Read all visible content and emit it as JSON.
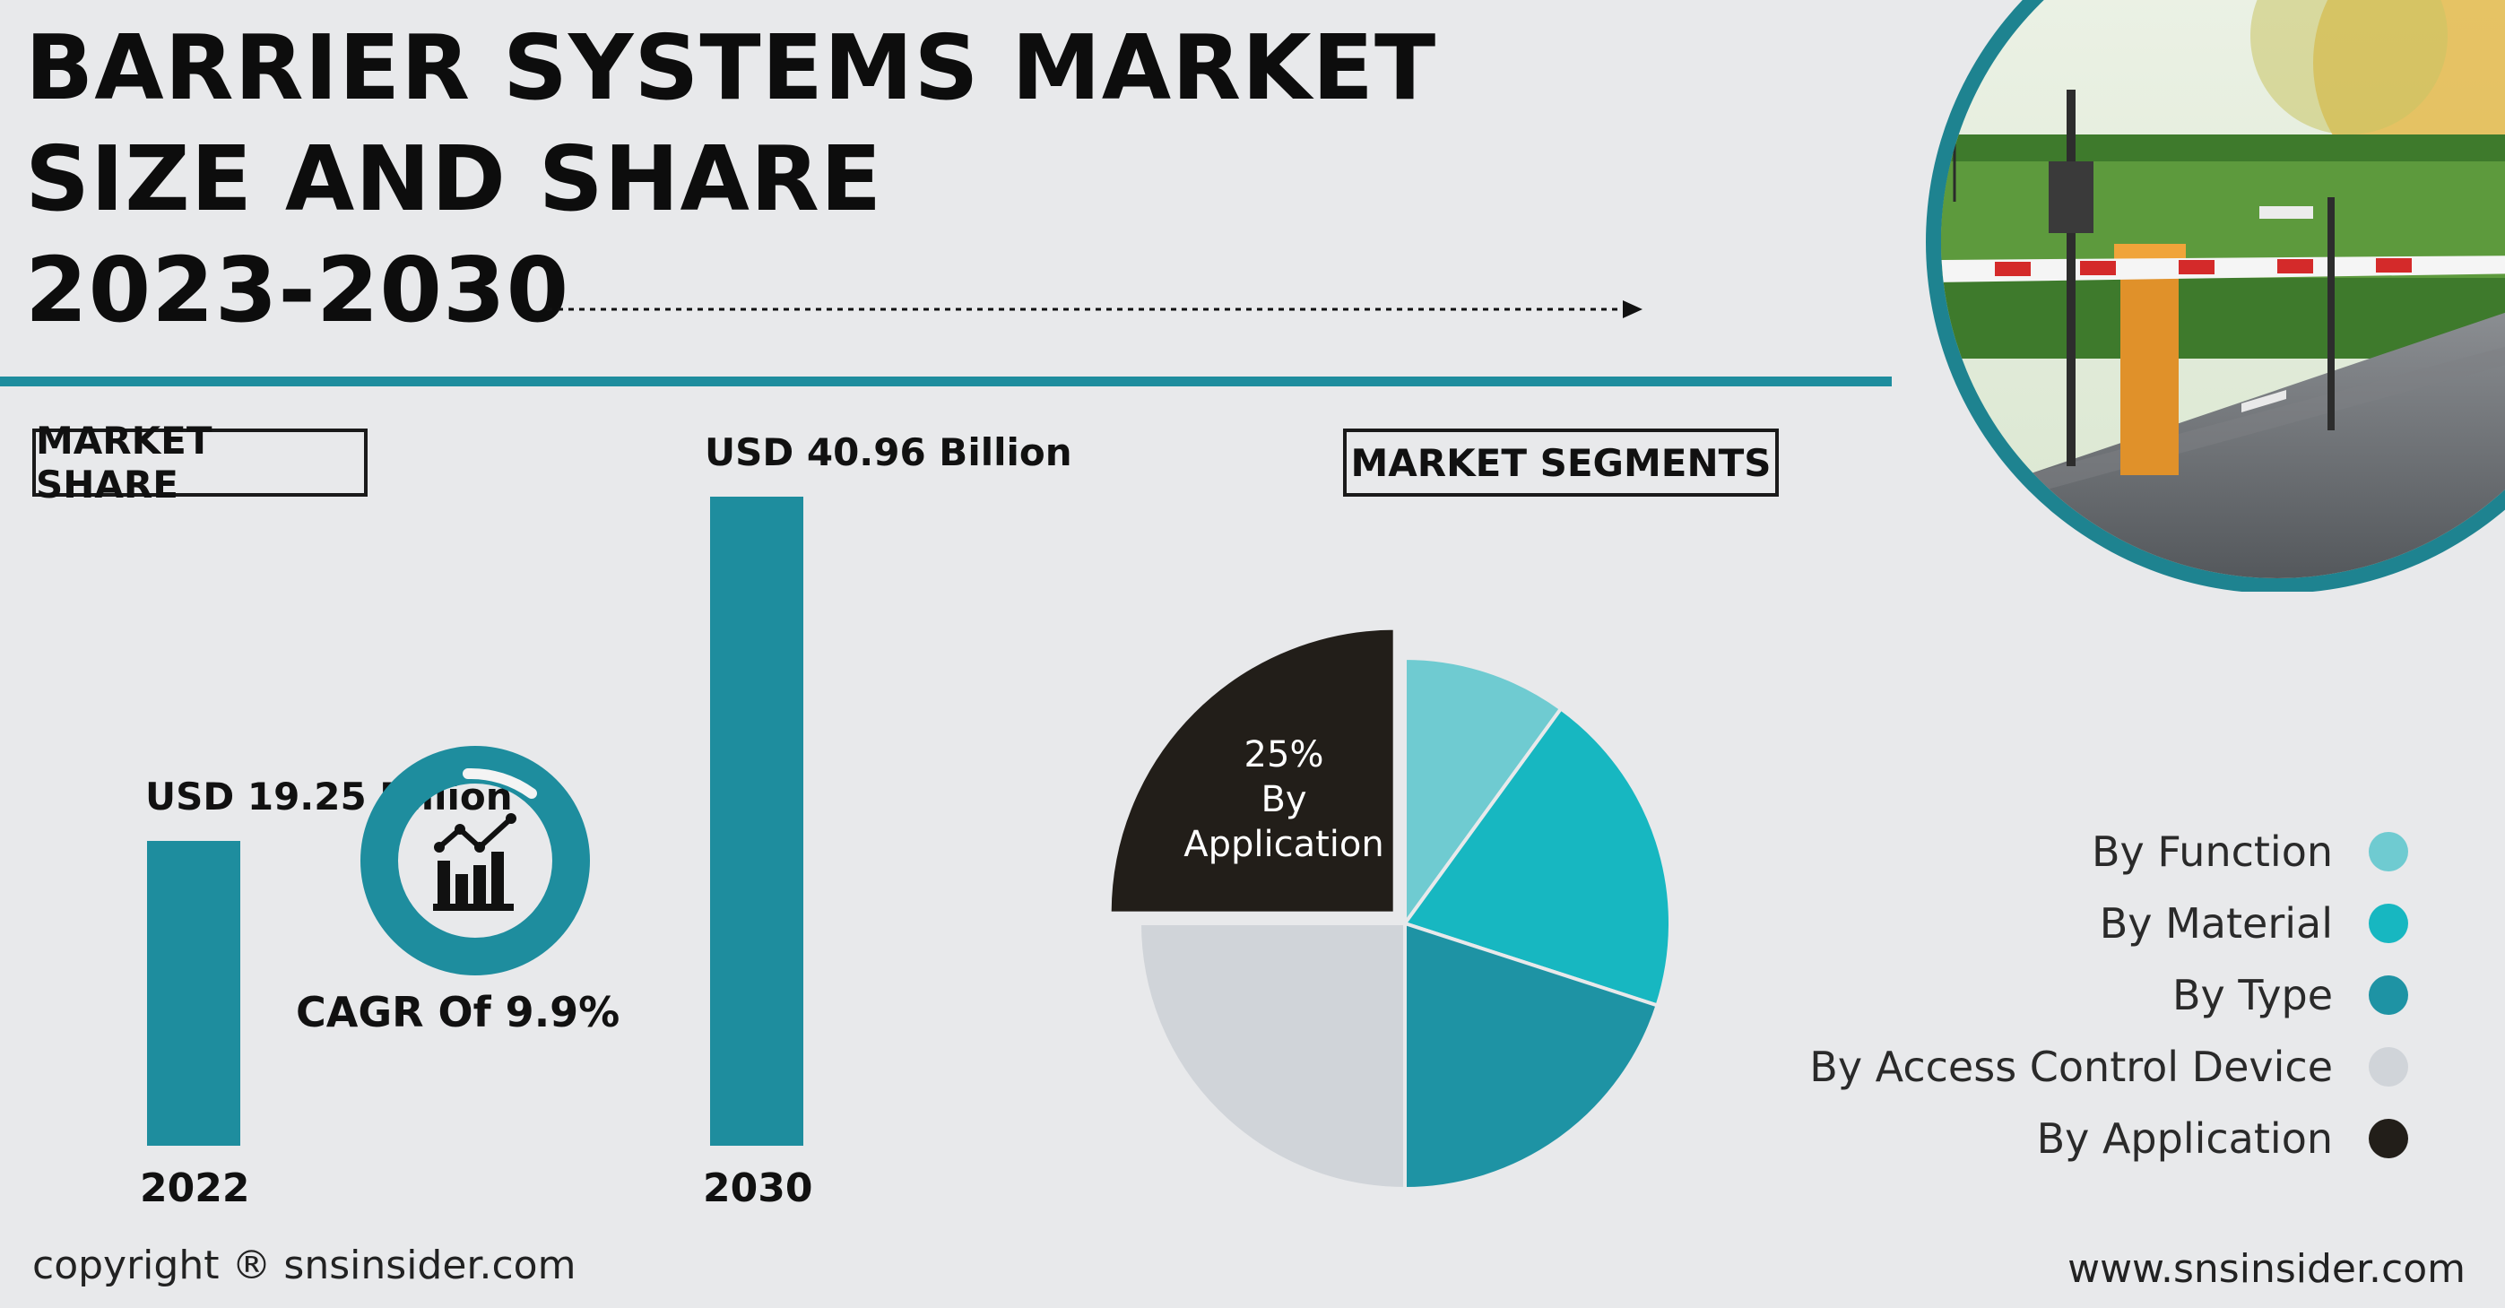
{
  "title": {
    "line1": "BARRIER SYSTEMS MARKET",
    "line2": "SIZE AND SHARE",
    "line3": "2023-2030"
  },
  "market_share_label": "MARKET SHARE",
  "market_segments_label": "MARKET SEGMENTS",
  "cagr_text": "CAGR Of 9.9%",
  "chart_data": [
    {
      "type": "bar",
      "categories": [
        "2022",
        "2030"
      ],
      "values": [
        19.25,
        40.96
      ],
      "value_labels": [
        "USD 19.25 Billion",
        "USD 40.96 Billion"
      ],
      "unit": "USD Billion",
      "color": "#1e8d9e"
    },
    {
      "type": "pie",
      "slices": [
        {
          "label": "By Function",
          "value": 10,
          "color": "#6fcbd1"
        },
        {
          "label": "By Material",
          "value": 20,
          "color": "#17b7c1"
        },
        {
          "label": "By Type",
          "value": 20,
          "color": "#1e93a4"
        },
        {
          "label": "By Access Control Device",
          "value": 25,
          "color": "#d0d4d9"
        },
        {
          "label": "By Application",
          "value": 25,
          "color": "#221e19",
          "exploded": true,
          "callout_pct": "25%",
          "callout_label_1": "By",
          "callout_label_2": "Application"
        }
      ]
    }
  ],
  "footer": {
    "copyright": "copyright ® snsinsider.com",
    "website": "www.snsinsider.com"
  }
}
